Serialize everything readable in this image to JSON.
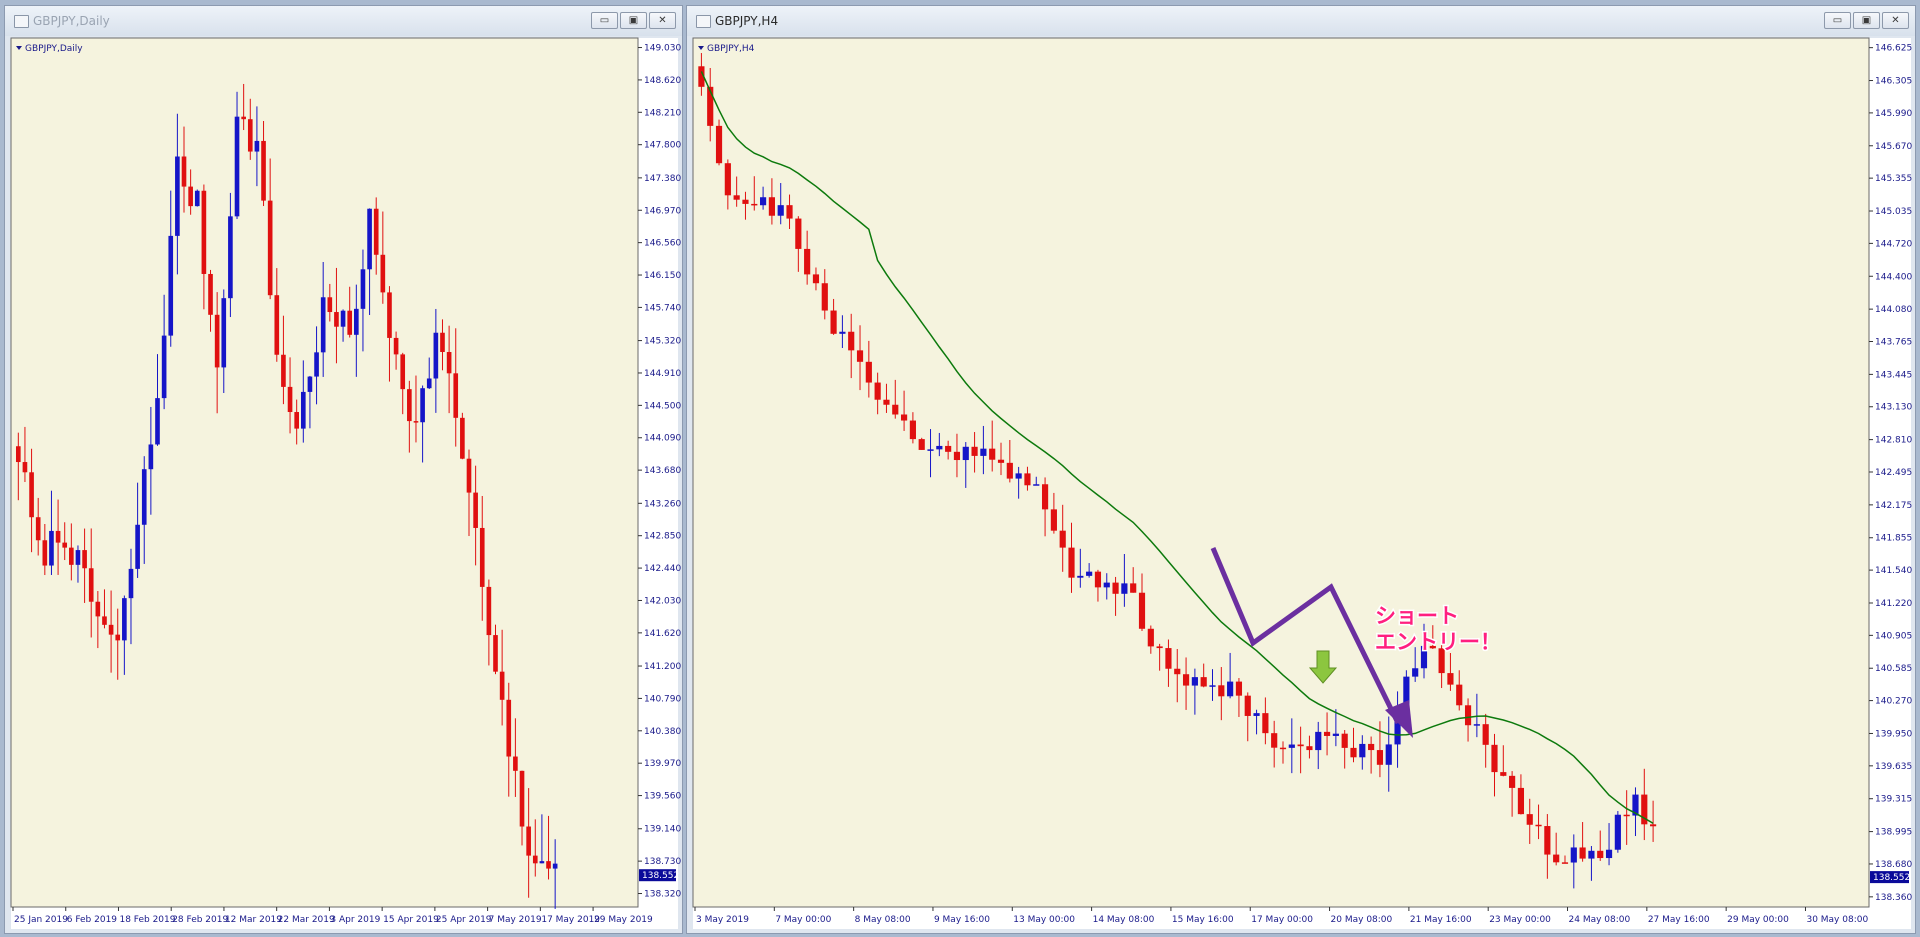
{
  "windows": {
    "left": {
      "title": "GBPJPY,Daily",
      "chart_label": "GBPJPY,Daily",
      "buttons": {
        "minimize": "▭",
        "maximize": "▣",
        "close": "✕"
      }
    },
    "right": {
      "title": "GBPJPY,H4",
      "chart_label": "GBPJPY,H4",
      "buttons": {
        "minimize": "▭",
        "maximize": "▣",
        "close": "✕"
      }
    }
  },
  "colors": {
    "background": "#f5f3de",
    "bull": "#1515c8",
    "bear": "#e01010",
    "grid_text": "#1a1a8a",
    "moving_average": "#0d7a0d",
    "arrow_purple": "#6b2fa0",
    "arrow_green": "#8cc63f",
    "annotation_pink": "#ff1f7f",
    "price_tag": "#0a0a9a"
  },
  "chart_data": [
    {
      "type": "candlestick",
      "symbol": "GBPJPY",
      "timeframe": "Daily",
      "ylim": [
        138.2,
        149.1
      ],
      "y_ticks": [
        "149.030",
        "148.620",
        "148.210",
        "147.800",
        "147.380",
        "146.970",
        "146.560",
        "146.150",
        "145.740",
        "145.320",
        "144.910",
        "144.500",
        "144.090",
        "143.680",
        "143.260",
        "142.850",
        "142.440",
        "142.030",
        "141.620",
        "141.200",
        "140.790",
        "140.380",
        "139.970",
        "139.560",
        "139.140",
        "138.730",
        "138.320"
      ],
      "current_price": "138.552",
      "x_labels": [
        "25 Jan 2019",
        "6 Feb 2019",
        "18 Feb 2019",
        "28 Feb 2019",
        "12 Mar 2019",
        "22 Mar 2019",
        "3 Apr 2019",
        "15 Apr 2019",
        "25 Apr 2019",
        "7 May 2019",
        "17 May 2019",
        "29 May 2019"
      ],
      "total_slots": 94
    },
    {
      "type": "candlestick",
      "symbol": "GBPJPY",
      "timeframe": "H4",
      "ylim": [
        138.3,
        146.68
      ],
      "y_ticks": [
        "146.625",
        "146.305",
        "145.990",
        "145.670",
        "145.355",
        "145.035",
        "144.720",
        "144.400",
        "144.080",
        "143.765",
        "143.445",
        "143.130",
        "142.810",
        "142.495",
        "142.175",
        "141.855",
        "141.540",
        "141.220",
        "140.905",
        "140.585",
        "140.270",
        "139.950",
        "139.635",
        "139.315",
        "138.995",
        "138.680",
        "138.360"
      ],
      "current_price": "138.552",
      "x_labels": [
        "3 May 2019",
        "7 May 00:00",
        "8 May 08:00",
        "9 May 16:00",
        "13 May 00:00",
        "14 May 08:00",
        "15 May 16:00",
        "17 May 00:00",
        "20 May 08:00",
        "21 May 16:00",
        "23 May 00:00",
        "24 May 08:00",
        "27 May 16:00",
        "29 May 00:00",
        "30 May 08:00"
      ],
      "total_slots": 133,
      "moving_average": true,
      "annotation": [
        "ショート",
        "エントリー！"
      ]
    }
  ]
}
